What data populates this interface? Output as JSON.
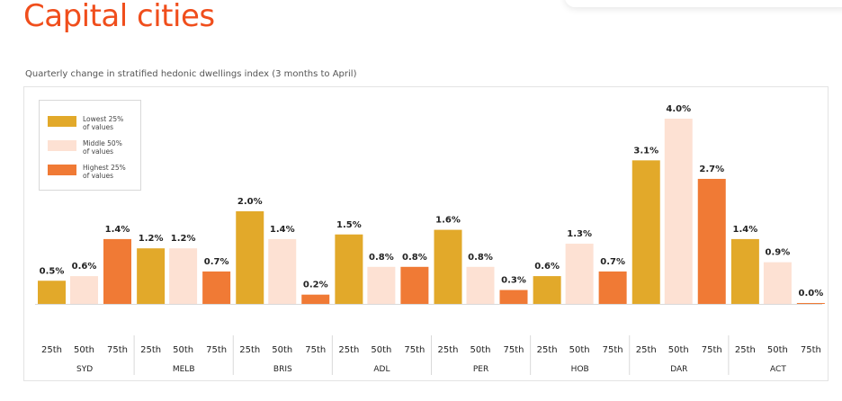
{
  "title": "Capital cities",
  "colors": {
    "title": "#f04e1c",
    "p25": "#e2a92a",
    "p50": "#fde1d3",
    "p75": "#f07a35"
  },
  "chart_data": {
    "type": "bar",
    "title": "Quarterly change in stratified hedonic dwellings index (3 months to April)",
    "xlabel": "",
    "ylabel": "",
    "ylim": [
      0,
      4.0
    ],
    "grid": false,
    "legend_placement": "top-left",
    "categories": [
      "SYD",
      "MELB",
      "BRIS",
      "ADL",
      "PER",
      "HOB",
      "DAR",
      "ACT"
    ],
    "sub_categories": [
      "25th",
      "50th",
      "75th"
    ],
    "series": [
      {
        "name": "Lowest 25% of values",
        "color": "#e2a92a",
        "values": [
          0.5,
          1.2,
          2.0,
          1.5,
          1.6,
          0.6,
          3.1,
          1.4
        ]
      },
      {
        "name": "Middle 50% of values",
        "color": "#fde1d3",
        "values": [
          0.6,
          1.2,
          1.4,
          0.8,
          0.8,
          1.3,
          4.0,
          0.9
        ]
      },
      {
        "name": "Highest 25% of values",
        "color": "#f07a35",
        "values": [
          1.4,
          0.7,
          0.2,
          0.8,
          0.3,
          0.7,
          2.7,
          0.0
        ]
      }
    ],
    "legend": {
      "items": [
        {
          "line1": "Lowest 25%",
          "line2": "of values"
        },
        {
          "line1": "Middle 50%",
          "line2": "of values"
        },
        {
          "line1": "Highest 25%",
          "line2": "of values"
        }
      ]
    }
  }
}
